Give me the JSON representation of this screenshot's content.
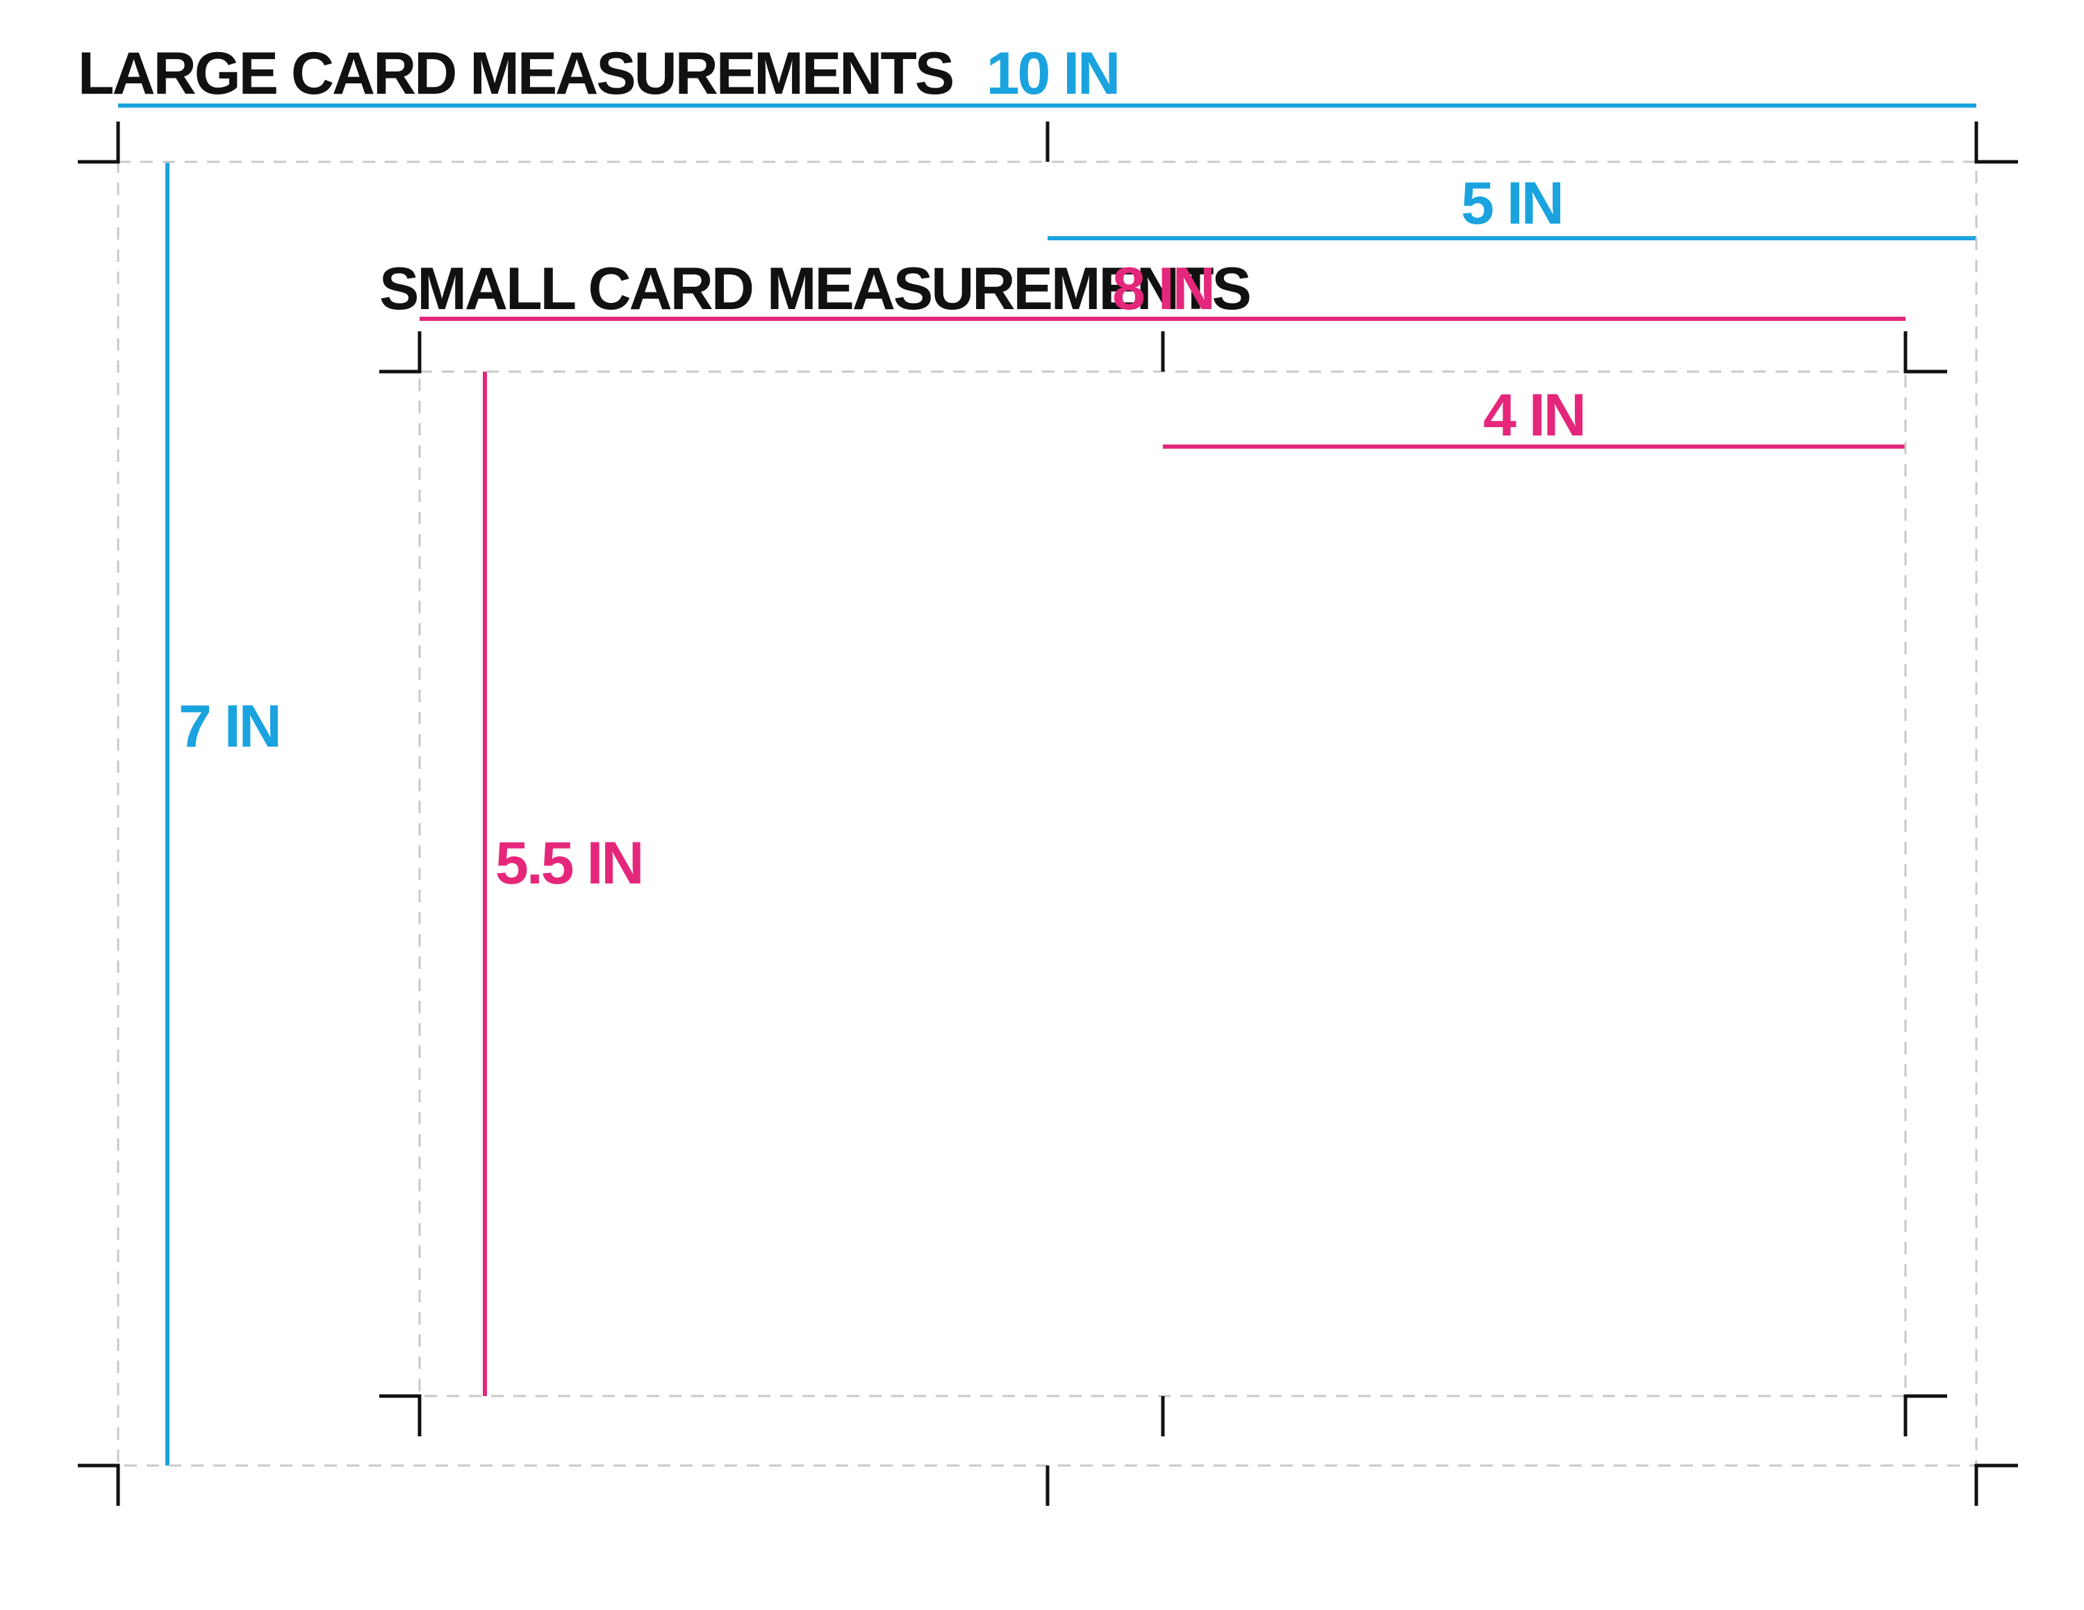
{
  "large_card": {
    "title": "LARGE CARD MEASUREMENTS",
    "width_label": "10 IN",
    "half_width_label": "5 IN",
    "height_label": "7 IN"
  },
  "small_card": {
    "title": "SMALL CARD MEASUREMENTS",
    "width_label": "8 IN",
    "half_width_label": "4 IN",
    "height_label": "5.5 IN"
  },
  "colors": {
    "large_accent": "#1AA3DF",
    "small_accent": "#E5277B",
    "crop_marks": "#111111",
    "card_outline": "#C8C8C8",
    "title_text": "#111111"
  }
}
